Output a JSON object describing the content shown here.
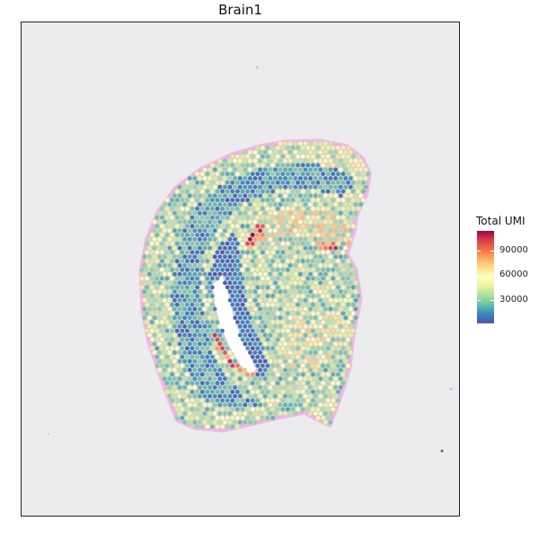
{
  "title": "Brain1",
  "legend": {
    "title": "Total UMI",
    "ticks": [
      "90000",
      "60000",
      "30000"
    ],
    "tick_values": [
      90000,
      60000,
      30000
    ],
    "min": 5000,
    "max": 105000
  },
  "colors": {
    "background": "#ecebee",
    "tissue_edge": "#f0a8e0",
    "scale": [
      "#5e4fa2",
      "#3288bd",
      "#66c2a5",
      "#abdda4",
      "#e6f598",
      "#ffffbf",
      "#fee08b",
      "#fdae61",
      "#f46d43",
      "#d53e4f",
      "#9e0142"
    ]
  }
}
